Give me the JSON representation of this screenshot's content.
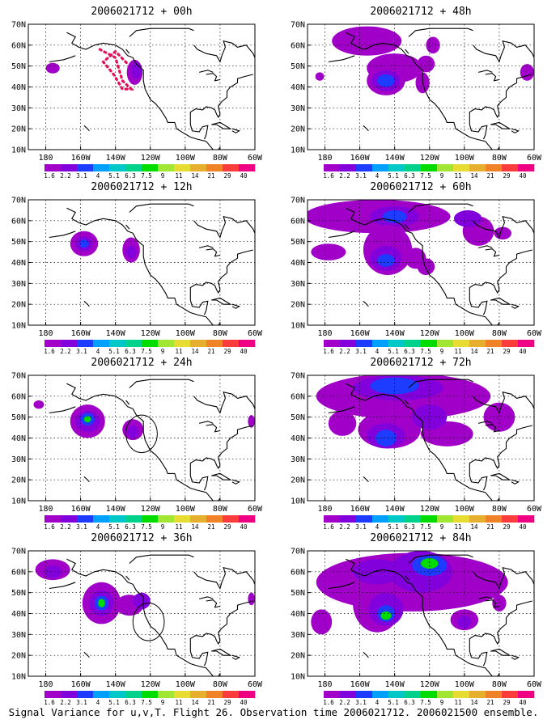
{
  "caption": "Signal Variance for u,v,T. Flight 26. Observation time 2006021712. 2006021500 ensemble.",
  "map": {
    "lon_ticks": [
      "180",
      "160W",
      "140W",
      "120W",
      "100W",
      "80W",
      "60W"
    ],
    "lat_ticks": [
      "10N",
      "20N",
      "30N",
      "40N",
      "50N",
      "60N",
      "70N"
    ],
    "lon_range": [
      -190,
      -60
    ],
    "lat_range": [
      10,
      70
    ]
  },
  "colorbar": {
    "labels": [
      "1.6",
      "2.2",
      "3.1",
      "4",
      "5.1",
      "6.3",
      "7.5",
      "9",
      "11",
      "14",
      "21",
      "29",
      "40"
    ],
    "colors": [
      "#a000c8",
      "#8200dc",
      "#1e3cff",
      "#00a0ff",
      "#00c8c8",
      "#00d28c",
      "#00dc00",
      "#a0e632",
      "#e6dc32",
      "#e6af2d",
      "#f08228",
      "#fa3c3c",
      "#f00082"
    ]
  },
  "panels": [
    {
      "title": "2006021712 + 00h",
      "blobs": [
        {
          "lon": -176,
          "lat": 49,
          "rx": 4,
          "ry": 2.5,
          "level": 0
        },
        {
          "lon": -129,
          "lat": 47,
          "rx": 4.5,
          "ry": 6,
          "level": 0
        },
        {
          "lon": -128,
          "lat": 48,
          "rx": 3,
          "ry": 4,
          "level": 1
        }
      ],
      "track": [
        [
          -149,
          58
        ],
        [
          -140,
          54
        ],
        [
          -136,
          43
        ],
        [
          -131,
          39
        ],
        [
          -136,
          39
        ],
        [
          -141,
          46
        ],
        [
          -147,
          52
        ],
        [
          -140,
          57
        ],
        [
          -133,
          51
        ]
      ],
      "rings": []
    },
    {
      "title": "2006021712 + 48h",
      "blobs": [
        {
          "lon": -156,
          "lat": 62,
          "rx": 20,
          "ry": 7,
          "level": 0
        },
        {
          "lon": -140,
          "lat": 49,
          "rx": 16,
          "ry": 7,
          "level": 0
        },
        {
          "lon": -145,
          "lat": 43,
          "rx": 11,
          "ry": 7,
          "level": 0
        },
        {
          "lon": -145,
          "lat": 43,
          "rx": 8,
          "ry": 5,
          "level": 1
        },
        {
          "lon": -145,
          "lat": 43,
          "rx": 5,
          "ry": 3,
          "level": 2
        },
        {
          "lon": -124,
          "lat": 42,
          "rx": 4,
          "ry": 5,
          "level": 0
        },
        {
          "lon": -122,
          "lat": 51,
          "rx": 5,
          "ry": 4,
          "level": 0
        },
        {
          "lon": -118,
          "lat": 60,
          "rx": 4,
          "ry": 4,
          "level": 0
        },
        {
          "lon": -183,
          "lat": 45,
          "rx": 2.5,
          "ry": 2,
          "level": 0
        },
        {
          "lon": -64,
          "lat": 47,
          "rx": 4,
          "ry": 4,
          "level": 0
        }
      ],
      "track": [],
      "rings": []
    },
    {
      "title": "2006021712 + 12h",
      "blobs": [
        {
          "lon": -158,
          "lat": 49,
          "rx": 8,
          "ry": 6,
          "level": 0
        },
        {
          "lon": -158,
          "lat": 49,
          "rx": 5,
          "ry": 3.5,
          "level": 1
        },
        {
          "lon": -158,
          "lat": 49,
          "rx": 2.5,
          "ry": 2,
          "level": 2
        },
        {
          "lon": -131,
          "lat": 46,
          "rx": 5,
          "ry": 6,
          "level": 0
        },
        {
          "lon": -131,
          "lat": 45,
          "rx": 3,
          "ry": 3,
          "level": 1
        }
      ],
      "track": [],
      "rings": []
    },
    {
      "title": "2006021712 + 60h",
      "blobs": [
        {
          "lon": -150,
          "lat": 62,
          "rx": 42,
          "ry": 8,
          "level": 0
        },
        {
          "lon": -140,
          "lat": 62,
          "rx": 14,
          "ry": 5,
          "level": 1
        },
        {
          "lon": -140,
          "lat": 62,
          "rx": 7,
          "ry": 3,
          "level": 2
        },
        {
          "lon": -178,
          "lat": 45,
          "rx": 10,
          "ry": 4,
          "level": 0
        },
        {
          "lon": -144,
          "lat": 46,
          "rx": 14,
          "ry": 12,
          "level": 0
        },
        {
          "lon": -145,
          "lat": 42,
          "rx": 9,
          "ry": 6,
          "level": 1
        },
        {
          "lon": -145,
          "lat": 41,
          "rx": 5,
          "ry": 3,
          "level": 2
        },
        {
          "lon": -128,
          "lat": 42,
          "rx": 6,
          "ry": 5,
          "level": 0
        },
        {
          "lon": -122,
          "lat": 38,
          "rx": 5,
          "ry": 4,
          "level": 0
        },
        {
          "lon": -92,
          "lat": 55,
          "rx": 9,
          "ry": 7,
          "level": 0
        },
        {
          "lon": -98,
          "lat": 61,
          "rx": 8,
          "ry": 4,
          "level": 1
        },
        {
          "lon": -78,
          "lat": 54,
          "rx": 5,
          "ry": 3,
          "level": 0
        }
      ],
      "track": [],
      "rings": []
    },
    {
      "title": "2006021712 + 24h",
      "blobs": [
        {
          "lon": -184,
          "lat": 56,
          "rx": 3,
          "ry": 2,
          "level": 0
        },
        {
          "lon": -156,
          "lat": 48,
          "rx": 10,
          "ry": 8,
          "level": 0
        },
        {
          "lon": -156,
          "lat": 48,
          "rx": 7,
          "ry": 5,
          "level": 1
        },
        {
          "lon": -156,
          "lat": 49,
          "rx": 4,
          "ry": 3,
          "level": 2
        },
        {
          "lon": -156,
          "lat": 49,
          "rx": 2,
          "ry": 1.5,
          "level": 6
        },
        {
          "lon": -130,
          "lat": 44,
          "rx": 6,
          "ry": 5,
          "level": 0
        },
        {
          "lon": -130,
          "lat": 43,
          "rx": 3,
          "ry": 3,
          "level": 1
        },
        {
          "lon": -62,
          "lat": 48,
          "rx": 2,
          "ry": 3,
          "level": 0
        }
      ],
      "track": [],
      "rings": [
        {
          "lon": -125,
          "lat": 42,
          "rx": 9,
          "ry": 9
        }
      ]
    },
    {
      "title": "2006021712 + 72h",
      "blobs": [
        {
          "lon": -135,
          "lat": 60,
          "rx": 50,
          "ry": 11,
          "level": 0
        },
        {
          "lon": -138,
          "lat": 64,
          "rx": 26,
          "ry": 6,
          "level": 1
        },
        {
          "lon": -140,
          "lat": 65,
          "rx": 14,
          "ry": 4,
          "level": 2
        },
        {
          "lon": -143,
          "lat": 44,
          "rx": 18,
          "ry": 9,
          "level": 0
        },
        {
          "lon": -145,
          "lat": 41,
          "rx": 11,
          "ry": 6,
          "level": 1
        },
        {
          "lon": -145,
          "lat": 40,
          "rx": 6,
          "ry": 4,
          "level": 2
        },
        {
          "lon": -110,
          "lat": 42,
          "rx": 15,
          "ry": 6,
          "level": 0
        },
        {
          "lon": -170,
          "lat": 47,
          "rx": 8,
          "ry": 6,
          "level": 0
        },
        {
          "lon": -80,
          "lat": 50,
          "rx": 9,
          "ry": 7,
          "level": 0
        },
        {
          "lon": -120,
          "lat": 50,
          "rx": 10,
          "ry": 6,
          "level": 1
        }
      ],
      "track": [],
      "rings": []
    },
    {
      "title": "2006021712 + 36h",
      "blobs": [
        {
          "lon": -176,
          "lat": 61,
          "rx": 10,
          "ry": 5,
          "level": 0
        },
        {
          "lon": -176,
          "lat": 60,
          "rx": 5,
          "ry": 3,
          "level": 1
        },
        {
          "lon": -148,
          "lat": 45,
          "rx": 11,
          "ry": 10,
          "level": 0
        },
        {
          "lon": -148,
          "lat": 45,
          "rx": 7,
          "ry": 6,
          "level": 1
        },
        {
          "lon": -148,
          "lat": 45,
          "rx": 4,
          "ry": 3.5,
          "level": 2
        },
        {
          "lon": -148,
          "lat": 45,
          "rx": 2,
          "ry": 2,
          "level": 6
        },
        {
          "lon": -132,
          "lat": 44,
          "rx": 8,
          "ry": 5,
          "level": 0
        },
        {
          "lon": -125,
          "lat": 46,
          "rx": 5,
          "ry": 4,
          "level": 1
        },
        {
          "lon": -62,
          "lat": 47,
          "rx": 2,
          "ry": 3,
          "level": 0
        }
      ],
      "track": [],
      "rings": [
        {
          "lon": -121,
          "lat": 36,
          "rx": 9,
          "ry": 9
        }
      ]
    },
    {
      "title": "2006021712 + 84h",
      "blobs": [
        {
          "lon": -130,
          "lat": 55,
          "rx": 55,
          "ry": 14,
          "level": 0
        },
        {
          "lon": -150,
          "lat": 45,
          "rx": 14,
          "ry": 14,
          "level": 0
        },
        {
          "lon": -145,
          "lat": 42,
          "rx": 10,
          "ry": 8,
          "level": 1
        },
        {
          "lon": -145,
          "lat": 40,
          "rx": 5,
          "ry": 4,
          "level": 2
        },
        {
          "lon": -145,
          "lat": 39,
          "rx": 3,
          "ry": 2,
          "level": 6
        },
        {
          "lon": -125,
          "lat": 60,
          "rx": 18,
          "ry": 10,
          "level": 1
        },
        {
          "lon": -120,
          "lat": 63,
          "rx": 10,
          "ry": 5,
          "level": 2
        },
        {
          "lon": -120,
          "lat": 64,
          "rx": 5,
          "ry": 2.5,
          "level": 6
        },
        {
          "lon": -150,
          "lat": 60,
          "rx": 14,
          "ry": 6,
          "level": 1
        },
        {
          "lon": -100,
          "lat": 37,
          "rx": 8,
          "ry": 5,
          "level": 0
        },
        {
          "lon": -100,
          "lat": 36,
          "rx": 4,
          "ry": 3,
          "level": 1
        },
        {
          "lon": -182,
          "lat": 36,
          "rx": 6,
          "ry": 6,
          "level": 0
        },
        {
          "lon": -80,
          "lat": 45,
          "rx": 4,
          "ry": 4,
          "level": 0
        }
      ],
      "track": [],
      "rings": []
    }
  ]
}
